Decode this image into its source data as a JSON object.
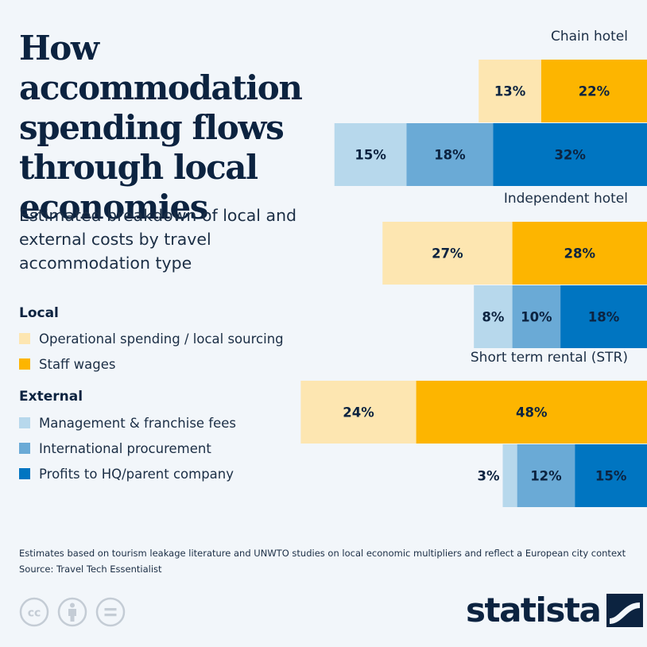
{
  "header": {
    "title": "How accommodation spending flows through local economies",
    "subtitle": "Estimated breakdown of local and external costs by travel accommodation type"
  },
  "legend": {
    "local_heading": "Local",
    "local_items": [
      "Operational spending / local sourcing",
      "Staff wages"
    ],
    "external_heading": "External",
    "external_items": [
      "Management & franchise fees",
      "International procurement",
      "Profits to HQ/parent company"
    ]
  },
  "colors": {
    "operational": "#fde6b1",
    "wages": "#fdb500",
    "fees": "#b7d8ec",
    "procurement": "#6aaad6",
    "profits": "#0075c1",
    "text_dark": "#0c2340"
  },
  "chart_data": {
    "type": "bar",
    "orientation": "horizontal",
    "stacked": true,
    "unit": "%",
    "categories": [
      "Chain hotel",
      "Independent hotel",
      "Short term rental (STR)"
    ],
    "local_series": [
      {
        "name": "Operational spending / local sourcing",
        "values": [
          13,
          27,
          24
        ],
        "labels": [
          "13%",
          "27%",
          "24%"
        ]
      },
      {
        "name": "Staff wages",
        "values": [
          22,
          28,
          48
        ],
        "labels": [
          "22%",
          "28%",
          "48%"
        ]
      }
    ],
    "external_series": [
      {
        "name": "Management & franchise fees",
        "values": [
          15,
          8,
          3
        ],
        "labels": [
          "15%",
          "8%",
          "3%"
        ]
      },
      {
        "name": "International procurement",
        "values": [
          18,
          10,
          12
        ],
        "labels": [
          "18%",
          "10%",
          "12%"
        ]
      },
      {
        "name": "Profits to HQ/parent company",
        "values": [
          32,
          18,
          15
        ],
        "labels": [
          "32%",
          "18%",
          "15%"
        ]
      }
    ],
    "legend_position": "left",
    "grid": false
  },
  "footer": {
    "note": "Estimates based on tourism leakage literature and UNWTO studies on local economic multipliers and reflect a European city context",
    "source": "Source: Travel Tech Essentialist"
  },
  "license_icons": [
    "creative-commons-icon",
    "attribution-icon",
    "no-derivatives-icon"
  ],
  "brand": {
    "name": "statista"
  }
}
